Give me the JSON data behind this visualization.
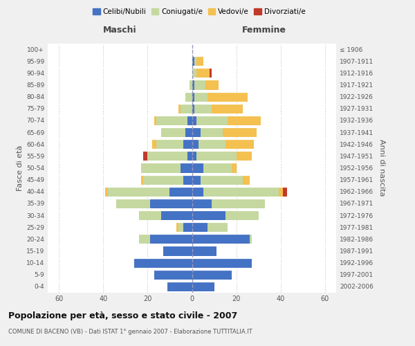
{
  "age_groups": [
    "0-4",
    "5-9",
    "10-14",
    "15-19",
    "20-24",
    "25-29",
    "30-34",
    "35-39",
    "40-44",
    "45-49",
    "50-54",
    "55-59",
    "60-64",
    "65-69",
    "70-74",
    "75-79",
    "80-84",
    "85-89",
    "90-94",
    "95-99",
    "100+"
  ],
  "birth_years": [
    "2002-2006",
    "1997-2001",
    "1992-1996",
    "1987-1991",
    "1982-1986",
    "1977-1981",
    "1972-1976",
    "1967-1971",
    "1962-1966",
    "1957-1961",
    "1952-1956",
    "1947-1951",
    "1942-1946",
    "1937-1941",
    "1932-1936",
    "1927-1931",
    "1922-1926",
    "1917-1921",
    "1912-1916",
    "1907-1911",
    "≤ 1906"
  ],
  "maschi": {
    "celibi": [
      11,
      17,
      26,
      13,
      19,
      4,
      14,
      19,
      10,
      4,
      5,
      2,
      4,
      3,
      2,
      0,
      0,
      0,
      0,
      0,
      0
    ],
    "coniugati": [
      0,
      0,
      0,
      0,
      5,
      2,
      10,
      15,
      28,
      18,
      18,
      18,
      12,
      11,
      14,
      5,
      3,
      1,
      0,
      0,
      0
    ],
    "vedovi": [
      0,
      0,
      0,
      0,
      0,
      1,
      0,
      0,
      1,
      1,
      0,
      0,
      2,
      0,
      1,
      1,
      0,
      0,
      0,
      0,
      0
    ],
    "divorziati": [
      0,
      0,
      0,
      0,
      0,
      0,
      0,
      0,
      0,
      0,
      0,
      2,
      0,
      0,
      0,
      0,
      0,
      0,
      0,
      0,
      0
    ]
  },
  "femmine": {
    "nubili": [
      10,
      18,
      27,
      11,
      26,
      7,
      15,
      9,
      5,
      4,
      5,
      2,
      3,
      4,
      2,
      1,
      1,
      1,
      0,
      1,
      0
    ],
    "coniugate": [
      0,
      0,
      0,
      0,
      1,
      9,
      15,
      24,
      34,
      19,
      13,
      18,
      12,
      10,
      14,
      8,
      6,
      5,
      2,
      1,
      0
    ],
    "vedove": [
      0,
      0,
      0,
      0,
      0,
      0,
      0,
      0,
      2,
      3,
      2,
      7,
      13,
      15,
      15,
      14,
      18,
      6,
      6,
      3,
      0
    ],
    "divorziate": [
      0,
      0,
      0,
      0,
      0,
      0,
      0,
      0,
      2,
      0,
      0,
      0,
      0,
      0,
      0,
      0,
      0,
      0,
      1,
      0,
      0
    ]
  },
  "colors": {
    "celibi": "#4472C4",
    "coniugati": "#c5d8a0",
    "vedovi": "#f4c050",
    "divorziati": "#c0392b"
  },
  "xlim": 65,
  "title": "Popolazione per età, sesso e stato civile - 2007",
  "subtitle": "COMUNE DI BACENO (VB) - Dati ISTAT 1° gennaio 2007 - Elaborazione TUTTITALIA.IT",
  "ylabel_left": "Fasce di età",
  "ylabel_right": "Anni di nascita",
  "xlabel_left": "Maschi",
  "xlabel_right": "Femmine",
  "background_color": "#f0f0f0",
  "plot_bg_color": "#ffffff",
  "legend_labels": [
    "Celibi/Nubili",
    "Coniugati/e",
    "Vedovi/e",
    "Divorziati/e"
  ]
}
